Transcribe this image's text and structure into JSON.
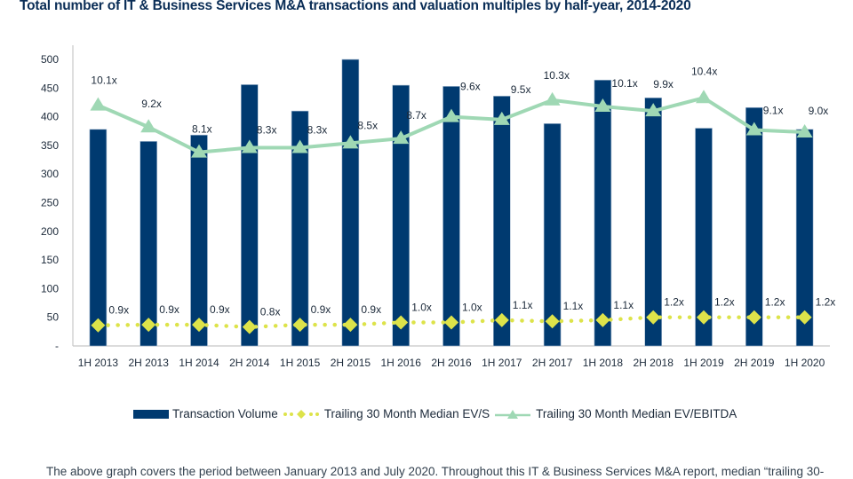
{
  "page": {
    "footer_text": "The above graph covers the period between January 2013 and July 2020. Throughout this IT & Business Services M&A report, median “trailing 30-"
  },
  "chart_data": {
    "type": "bar",
    "title": "Total number of IT & Business Services M&A transactions and valuation multiples by half-year, 2014-2020",
    "xlabel": "",
    "ylabel": "",
    "ylim": [
      0,
      500
    ],
    "yticks": [
      0,
      50,
      100,
      150,
      200,
      250,
      300,
      350,
      400,
      450,
      500
    ],
    "ytick_labels": [
      "-",
      "50",
      "100",
      "150",
      "200",
      "250",
      "300",
      "350",
      "400",
      "450",
      "500"
    ],
    "grid": false,
    "legend_position": "bottom",
    "categories": [
      "1H 2013",
      "2H 2013",
      "1H 2014",
      "2H 2014",
      "1H 2015",
      "2H 2015",
      "1H 2016",
      "2H 2016",
      "1H 2017",
      "2H 2017",
      "1H 2018",
      "2H 2018",
      "1H 2019",
      "2H 2019",
      "1H 2020"
    ],
    "series": [
      {
        "name": "Transaction Volume",
        "kind": "bar",
        "color": "#003a70",
        "values": [
          378,
          357,
          368,
          456,
          410,
          500,
          455,
          453,
          436,
          388,
          464,
          433,
          380,
          416,
          378
        ]
      },
      {
        "name": "Trailing 30 Month Median EV/S",
        "kind": "line",
        "style": "dotted",
        "marker": "diamond",
        "color": "#dde34a",
        "plotted_values": [
          36,
          37,
          37,
          33,
          37,
          37,
          41,
          41,
          45,
          43,
          45,
          50,
          50,
          50,
          50
        ],
        "labels": [
          "0.9x",
          "0.9x",
          "0.9x",
          "0.8x",
          "0.9x",
          "0.9x",
          "1.0x",
          "1.0x",
          "1.1x",
          "1.1x",
          "1.1x",
          "1.2x",
          "1.2x",
          "1.2x",
          "1.2x"
        ],
        "multiples": [
          0.9,
          0.9,
          0.9,
          0.8,
          0.9,
          0.9,
          1.0,
          1.0,
          1.1,
          1.1,
          1.1,
          1.2,
          1.2,
          1.2,
          1.2
        ]
      },
      {
        "name": "Trailing 30 Month Median EV/EBITDA",
        "kind": "line",
        "style": "solid",
        "marker": "triangle",
        "color": "#9fd8b4",
        "plotted_values": [
          420,
          382,
          338,
          346,
          346,
          354,
          362,
          400,
          395,
          429,
          418,
          410,
          433,
          377,
          373
        ],
        "labels": [
          "10.1x",
          "9.2x",
          "8.1x",
          "8.3x",
          "8.3x",
          "8.5x",
          "8.7x",
          "9.6x",
          "9.5x",
          "10.3x",
          "10.1x",
          "9.9x",
          "10.4x",
          "9.1x",
          "9.0x"
        ],
        "multiples": [
          10.1,
          9.2,
          8.1,
          8.3,
          8.3,
          8.5,
          8.7,
          9.6,
          9.5,
          10.3,
          10.1,
          9.9,
          10.4,
          9.1,
          9.0
        ]
      }
    ]
  }
}
